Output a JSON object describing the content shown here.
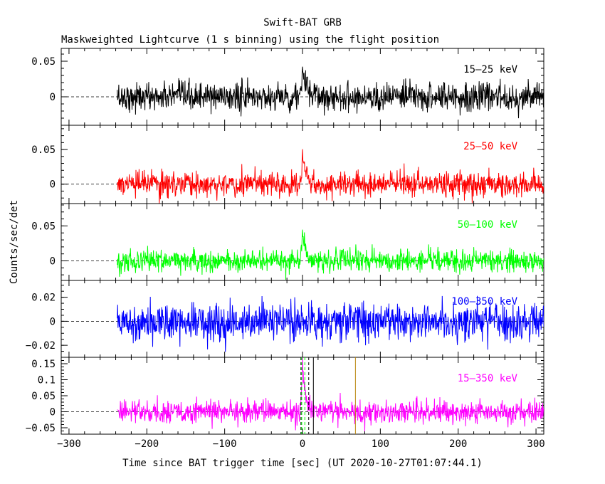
{
  "title": "Swift-BAT GRB",
  "subtitle": "Maskweighted Lightcurve (1 s binning) using the flight position",
  "ylabel": "Counts/sec/det",
  "xlabel": "Time since BAT trigger time [sec] (UT 2020-10-27T01:07:44.1)",
  "chart_data": [
    {
      "type": "line",
      "name": "15-25 keV",
      "label": "15–25 keV",
      "color": "#000000",
      "xlim": [
        -310,
        310
      ],
      "ylim": [
        -0.04,
        0.068
      ],
      "yticks": [
        0,
        0.05
      ],
      "ytick_labels": [
        "0",
        "0.05"
      ],
      "data_x_range": [
        -238,
        310
      ],
      "noise_sd": 0.01,
      "peak": {
        "t": 0,
        "height": 0.045,
        "decay": 4
      }
    },
    {
      "type": "line",
      "name": "25-50 keV",
      "label": "25–50 keV",
      "color": "#ff0000",
      "xlim": [
        -310,
        310
      ],
      "ylim": [
        -0.028,
        0.085
      ],
      "yticks": [
        0,
        0.05
      ],
      "ytick_labels": [
        "0",
        "0.05"
      ],
      "data_x_range": [
        -238,
        310
      ],
      "noise_sd": 0.009,
      "peak": {
        "t": 0,
        "height": 0.06,
        "decay": 4
      }
    },
    {
      "type": "line",
      "name": "50-100 keV",
      "label": "50–100 keV",
      "color": "#00ff00",
      "xlim": [
        -310,
        310
      ],
      "ylim": [
        -0.028,
        0.082
      ],
      "yticks": [
        0,
        0.05
      ],
      "ytick_labels": [
        "0",
        "0.05"
      ],
      "data_x_range": [
        -238,
        310
      ],
      "noise_sd": 0.008,
      "peak": {
        "t": 0,
        "height": 0.05,
        "decay": 4
      }
    },
    {
      "type": "line",
      "name": "100-350 keV",
      "label": "100–350 keV",
      "color": "#0000ff",
      "xlim": [
        -310,
        310
      ],
      "ylim": [
        -0.03,
        0.034
      ],
      "yticks": [
        -0.02,
        0,
        0.02
      ],
      "ytick_labels": [
        "−0.02",
        "0",
        "0.02"
      ],
      "data_x_range": [
        -238,
        310
      ],
      "noise_sd": 0.008,
      "peak": {
        "t": 0,
        "height": 0.0,
        "decay": 4
      }
    },
    {
      "type": "line",
      "name": "15-350 keV",
      "label": "15–350 keV",
      "color": "#ff00ff",
      "xlim": [
        -310,
        310
      ],
      "xticks": [
        -300,
        -200,
        -100,
        0,
        100,
        200,
        300
      ],
      "xtick_labels": [
        "−300",
        "−200",
        "−100",
        "0",
        "100",
        "200",
        "300"
      ],
      "ylim": [
        -0.07,
        0.17
      ],
      "yticks": [
        -0.05,
        0,
        0.05,
        0.1,
        0.15
      ],
      "ytick_labels": [
        "−0.05",
        "0",
        "0.05",
        "0.1",
        "0.15"
      ],
      "data_x_range": [
        -238,
        310
      ],
      "noise_sd": 0.018,
      "peak": {
        "t": 0,
        "height": 0.15,
        "decay": 4
      },
      "vlines": [
        {
          "x": -2,
          "color": "#000000",
          "style": "dashed"
        },
        {
          "x": 8,
          "color": "#000000",
          "style": "dashed"
        },
        {
          "x": 14,
          "color": "#000000",
          "style": "solid"
        },
        {
          "x": 68,
          "color": "#b8860b",
          "style": "solid"
        },
        {
          "x": -1,
          "color": "#00ff00",
          "style": "dashed"
        },
        {
          "x": 3,
          "color": "#00ff00",
          "style": "dashed"
        }
      ]
    }
  ]
}
